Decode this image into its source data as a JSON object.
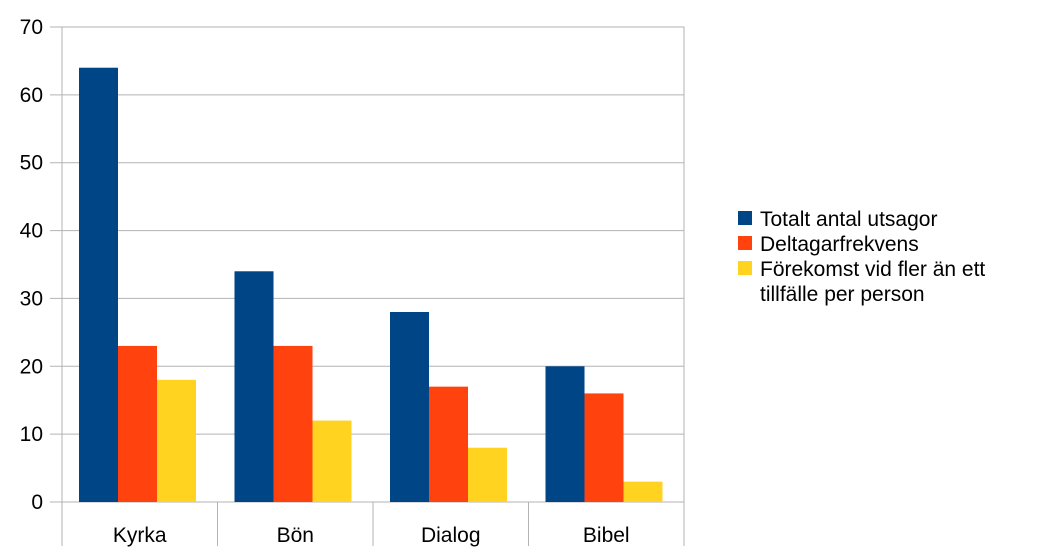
{
  "chart_data": {
    "type": "bar",
    "categories": [
      "Kyrka",
      "Bön",
      "Dialog",
      "Bibel"
    ],
    "series": [
      {
        "name": "Totalt antal utsagor",
        "color": "#004586",
        "values": [
          64,
          34,
          28,
          20
        ]
      },
      {
        "name": "Deltagarfrekvens",
        "color": "#ff420e",
        "values": [
          23,
          23,
          17,
          16
        ]
      },
      {
        "name": "Förekomst vid fler än ett tillfälle per person",
        "color": "#ffd320",
        "values": [
          18,
          12,
          8,
          3
        ]
      }
    ],
    "ylim": [
      0,
      70
    ],
    "yticks": [
      0,
      10,
      20,
      30,
      40,
      50,
      60,
      70
    ],
    "grid": true,
    "legend_position": "right"
  }
}
